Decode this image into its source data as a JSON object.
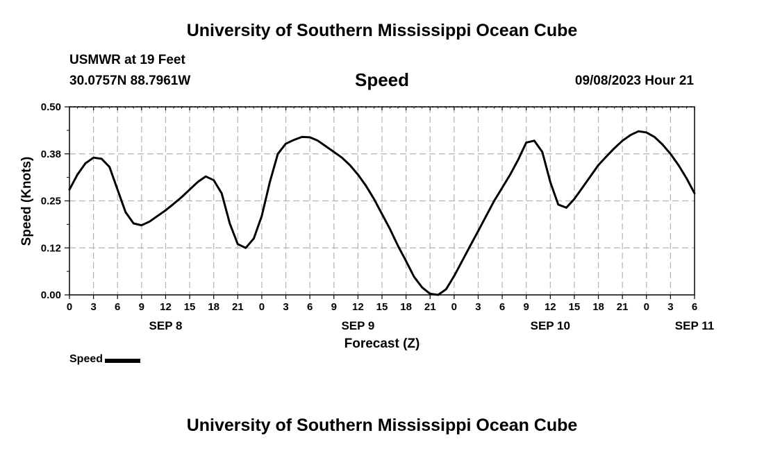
{
  "header": {
    "title": "University of Southern Mississippi Ocean Cube",
    "station": "USMWR at 19 Feet",
    "coords": "30.0757N  88.7961W",
    "plot_title": "Speed",
    "timestamp": "09/08/2023 Hour 21"
  },
  "footer": {
    "title": "University of Southern Mississippi Ocean Cube"
  },
  "legend": {
    "label": "Speed",
    "color": "#000000"
  },
  "chart_data": {
    "type": "line",
    "title": "Speed",
    "xlabel": "Forecast (Z)",
    "ylabel": "Speed (Knots)",
    "ylim": [
      0,
      0.5
    ],
    "y_ticks": [
      "0.00",
      "0.12",
      "0.25",
      "0.38",
      "0.50"
    ],
    "x_tick_labels": [
      "0",
      "3",
      "6",
      "9",
      "12",
      "15",
      "18",
      "21",
      "0",
      "3",
      "6",
      "9",
      "12",
      "15",
      "18",
      "21",
      "0",
      "3",
      "6",
      "9",
      "12",
      "15",
      "18",
      "21",
      "0",
      "3",
      "6"
    ],
    "date_labels": [
      {
        "label": "SEP 8",
        "hour": 12
      },
      {
        "label": "SEP 9",
        "hour": 36
      },
      {
        "label": "SEP 10",
        "hour": 60
      },
      {
        "label": "SEP 11",
        "hour": 78
      }
    ],
    "grid": true,
    "series": [
      {
        "name": "Speed",
        "x": [
          0,
          1,
          2,
          3,
          4,
          5,
          6,
          7,
          8,
          9,
          10,
          11,
          12,
          13,
          14,
          15,
          16,
          17,
          18,
          19,
          20,
          21,
          22,
          23,
          24,
          25,
          26,
          27,
          28,
          29,
          30,
          31,
          32,
          33,
          34,
          35,
          36,
          37,
          38,
          39,
          40,
          41,
          42,
          43,
          44,
          45,
          46,
          47,
          48,
          49,
          50,
          51,
          52,
          53,
          54,
          55,
          56,
          57,
          58,
          59,
          60,
          61,
          62,
          63,
          64,
          65,
          66,
          67,
          68,
          69,
          70,
          71,
          72,
          73,
          74,
          75,
          76,
          77,
          78
        ],
        "values": [
          0.28,
          0.32,
          0.35,
          0.365,
          0.362,
          0.34,
          0.28,
          0.22,
          0.19,
          0.185,
          0.195,
          0.21,
          0.225,
          0.242,
          0.26,
          0.28,
          0.3,
          0.315,
          0.305,
          0.27,
          0.19,
          0.135,
          0.125,
          0.15,
          0.21,
          0.3,
          0.375,
          0.402,
          0.412,
          0.42,
          0.419,
          0.41,
          0.395,
          0.38,
          0.365,
          0.345,
          0.32,
          0.29,
          0.255,
          0.215,
          0.175,
          0.13,
          0.09,
          0.048,
          0.02,
          0.003,
          0.0,
          0.015,
          0.05,
          0.09,
          0.13,
          0.17,
          0.21,
          0.25,
          0.285,
          0.32,
          0.36,
          0.405,
          0.41,
          0.38,
          0.3,
          0.24,
          0.232,
          0.255,
          0.285,
          0.315,
          0.345,
          0.368,
          0.39,
          0.41,
          0.425,
          0.435,
          0.432,
          0.42,
          0.4,
          0.375,
          0.345,
          0.31,
          0.27
        ]
      }
    ]
  }
}
